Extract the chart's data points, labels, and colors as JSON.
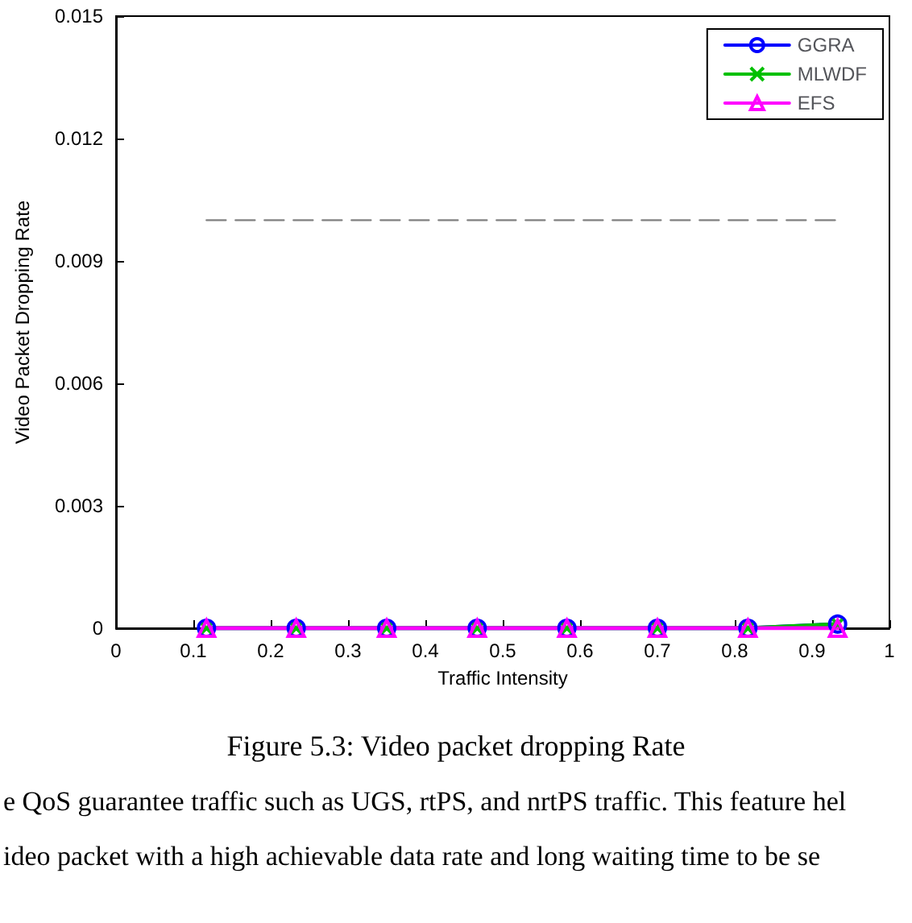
{
  "chart_data": {
    "type": "line",
    "xlabel": "Traffic Intensity",
    "ylabel": "Video Packet Dropping Rate",
    "xlim": [
      0,
      1
    ],
    "xticks": [
      0,
      0.1,
      0.2,
      0.3,
      0.4,
      0.5,
      0.6,
      0.7,
      0.8,
      0.9,
      1
    ],
    "ylim": [
      0,
      0.015
    ],
    "yticks": [
      0,
      0.003,
      0.006,
      0.009,
      0.012,
      0.015
    ],
    "grid": false,
    "legend": "top right",
    "series": [
      {
        "name": "GGRA",
        "color": "#0000ff",
        "marker": "circle",
        "x": [
          0.117,
          0.233,
          0.35,
          0.467,
          0.583,
          0.7,
          0.817,
          0.933
        ],
        "values": [
          0,
          0,
          0,
          0,
          0,
          0,
          0,
          0.0001
        ]
      },
      {
        "name": "MLWDF",
        "color": "#00c000",
        "marker": "cross",
        "x": [
          0.117,
          0.233,
          0.35,
          0.467,
          0.583,
          0.7,
          0.817,
          0.933
        ],
        "values": [
          0,
          0,
          0,
          0,
          0,
          0,
          0,
          0.0001
        ]
      },
      {
        "name": "EFS",
        "color": "#ff00ff",
        "marker": "triangle",
        "x": [
          0.117,
          0.233,
          0.35,
          0.467,
          0.583,
          0.7,
          0.817,
          0.933
        ],
        "values": [
          0,
          0,
          0,
          0,
          0,
          0,
          0,
          0
        ]
      },
      {
        "color": "#808080",
        "marker": "none",
        "line_style": "dashed",
        "x": [
          0.117,
          0.935
        ],
        "values": [
          0.01,
          0.01
        ]
      }
    ],
    "annotations": [
      "Figure 5.3: Video packet dropping Rate",
      "e QoS guarantee traffic such as UGS, rtPS, and nrtPS traffic. This feature hel",
      "ideo packet with a high achievable data rate and long waiting time to be se"
    ]
  }
}
